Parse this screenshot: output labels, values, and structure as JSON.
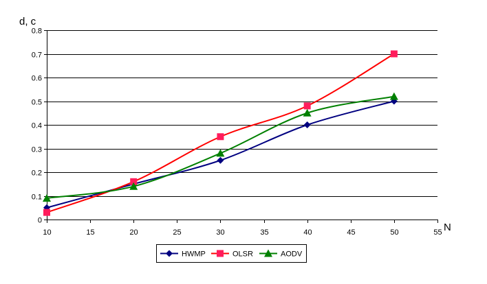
{
  "chart_data": {
    "type": "line",
    "title": "",
    "xlabel": "N",
    "ylabel": "d, c",
    "x": [
      10,
      20,
      30,
      40,
      50
    ],
    "xlim": [
      10,
      55
    ],
    "xticks": [
      10,
      15,
      20,
      25,
      30,
      35,
      40,
      45,
      50,
      55
    ],
    "ylim": [
      0,
      0.8
    ],
    "yticks": [
      0,
      0.1,
      0.2,
      0.3,
      0.4,
      0.5,
      0.6,
      0.7,
      0.8
    ],
    "grid": "horizontal",
    "smooth": true,
    "legend_position": "bottom",
    "series": [
      {
        "name": "HWMP",
        "color": "#000080",
        "marker": "diamond",
        "values": [
          0.05,
          0.15,
          0.25,
          0.4,
          0.5
        ]
      },
      {
        "name": "OLSR",
        "color": "#FF0000",
        "marker": "square",
        "marker_color": "#FF1C5C",
        "values": [
          0.03,
          0.16,
          0.35,
          0.48,
          0.7
        ]
      },
      {
        "name": "AODV",
        "color": "#008000",
        "marker": "triangle",
        "values": [
          0.09,
          0.14,
          0.28,
          0.45,
          0.52
        ]
      }
    ]
  }
}
